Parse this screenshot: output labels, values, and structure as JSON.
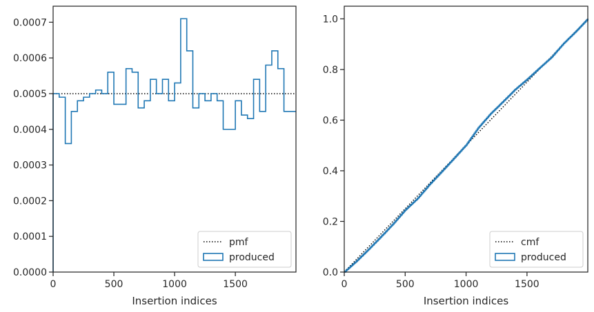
{
  "chart_data": [
    {
      "type": "histogram",
      "title": "",
      "xlabel": "Insertion indices",
      "ylabel": "",
      "xlim": [
        0,
        1999
      ],
      "ylim": [
        0,
        0.000745
      ],
      "xticks": [
        0,
        500,
        1000,
        1500
      ],
      "xtick_labels": [
        "0",
        "500",
        "1000",
        "1500"
      ],
      "yticks": [
        0,
        0.0001,
        0.0002,
        0.0003,
        0.0004,
        0.0005,
        0.0006,
        0.0007
      ],
      "ytick_labels": [
        "0.0000",
        "0.0001",
        "0.0002",
        "0.0003",
        "0.0004",
        "0.0005",
        "0.0006",
        "0.0007"
      ],
      "grid": false,
      "legend_position": "bottom-right",
      "legend": [
        "pmf",
        "produced"
      ],
      "series": [
        {
          "name": "pmf",
          "kind": "dotted-line",
          "color": "#000000",
          "x": [
            0,
            1999
          ],
          "y": [
            0.0005,
            0.0005
          ]
        },
        {
          "name": "produced",
          "kind": "step-histogram",
          "color": "#1f77b4",
          "bin_width": 50,
          "bin_starts": [
            0,
            50,
            100,
            150,
            200,
            250,
            300,
            350,
            400,
            450,
            500,
            550,
            600,
            650,
            700,
            750,
            800,
            850,
            900,
            950,
            1000,
            1050,
            1100,
            1150,
            1200,
            1250,
            1300,
            1350,
            1400,
            1450,
            1500,
            1550,
            1600,
            1650,
            1700,
            1750,
            1800,
            1850,
            1900,
            1950
          ],
          "values": [
            0.0005,
            0.00049,
            0.00036,
            0.00045,
            0.00048,
            0.00049,
            0.0005,
            0.00051,
            0.0005,
            0.00056,
            0.00047,
            0.00047,
            0.00057,
            0.00056,
            0.00046,
            0.00048,
            0.00054,
            0.0005,
            0.00054,
            0.00048,
            0.00053,
            0.00071,
            0.00062,
            0.00046,
            0.0005,
            0.00048,
            0.0005,
            0.00048,
            0.0004,
            0.0004,
            0.00048,
            0.00044,
            0.00043,
            0.00054,
            0.00045,
            0.00058,
            0.00062,
            0.00057,
            0.00045,
            0.00045
          ]
        }
      ]
    },
    {
      "type": "cumulative-histogram",
      "title": "",
      "xlabel": "Insertion indices",
      "ylabel": "",
      "xlim": [
        0,
        1999
      ],
      "ylim": [
        0,
        1.05
      ],
      "xticks": [
        0,
        500,
        1000,
        1500
      ],
      "xtick_labels": [
        "0",
        "500",
        "1000",
        "1500"
      ],
      "yticks": [
        0,
        0.2,
        0.4,
        0.6,
        0.8,
        1.0
      ],
      "ytick_labels": [
        "0.0",
        "0.2",
        "0.4",
        "0.6",
        "0.8",
        "1.0"
      ],
      "grid": false,
      "legend_position": "bottom-right",
      "legend": [
        "cmf",
        "produced"
      ],
      "series": [
        {
          "name": "cmf",
          "kind": "dotted-line",
          "color": "#000000",
          "x": [
            0,
            1999
          ],
          "y": [
            0,
            1.0
          ]
        },
        {
          "name": "produced",
          "kind": "step-line",
          "color": "#1f77b4",
          "x": [
            0,
            100,
            200,
            300,
            400,
            500,
            600,
            700,
            800,
            900,
            1000,
            1100,
            1200,
            1300,
            1400,
            1500,
            1600,
            1700,
            1800,
            1900,
            1999
          ],
          "y": [
            0,
            0.043,
            0.09,
            0.139,
            0.19,
            0.245,
            0.29,
            0.346,
            0.397,
            0.449,
            0.502,
            0.57,
            0.625,
            0.672,
            0.72,
            0.761,
            0.805,
            0.848,
            0.903,
            0.95,
            1.0
          ]
        }
      ]
    }
  ]
}
